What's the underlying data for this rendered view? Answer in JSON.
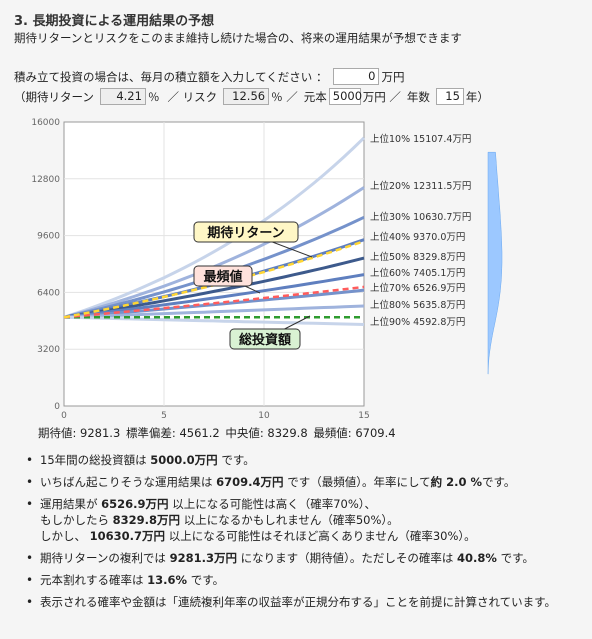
{
  "header": {
    "title": "3. 長期投資による運用結果の予想",
    "subtitle": "期待リターンとリスクをこのまま維持し続けた場合の、将来の運用結果が予想できます"
  },
  "inputs": {
    "monthly_label": "積み立て投資の場合は、毎月の積立額を入力してください ：",
    "monthly_value": "0",
    "monthly_unit": "万円",
    "open_paren": "（期待リターン",
    "return_value": "4.21",
    "return_unit": "％",
    "risk_label": "／ リスク",
    "risk_value": "12.56",
    "risk_unit": "％ ／",
    "principal_label": "元本",
    "principal_value": "5000",
    "principal_unit": "万円 ／",
    "years_label": "年数",
    "years_value": "15",
    "years_unit": "年）"
  },
  "chart_data": {
    "type": "line",
    "x_ticks": [
      "0",
      "5",
      "10",
      "15"
    ],
    "y_ticks": [
      "0",
      "3200",
      "6400",
      "9600",
      "12800",
      "16000"
    ],
    "xlim": [
      0,
      15
    ],
    "ylim": [
      0,
      16000
    ],
    "percentile_lines": [
      {
        "label": "上位10%",
        "value_label": "15107.4万円",
        "end": 15107.4,
        "color": "#c7d4ea"
      },
      {
        "label": "上位20%",
        "value_label": "12311.5万円",
        "end": 12311.5,
        "color": "#9fb3dd"
      },
      {
        "label": "上位30%",
        "value_label": "10630.7万円",
        "end": 10630.7,
        "color": "#7592cb"
      },
      {
        "label": "上位40%",
        "value_label": "9370.0万円",
        "end": 9370.0,
        "color": "#5f7fbf"
      },
      {
        "label": "上位50%",
        "value_label": "8329.8万円",
        "end": 8329.8,
        "color": "#3d5a8c"
      },
      {
        "label": "上位60%",
        "value_label": "7405.1万円",
        "end": 7405.1,
        "color": "#5f7fbf"
      },
      {
        "label": "上位70%",
        "value_label": "6526.9万円",
        "end": 6526.9,
        "color": "#7592cb"
      },
      {
        "label": "上位80%",
        "value_label": "5635.8万円",
        "end": 5635.8,
        "color": "#9fb3dd"
      },
      {
        "label": "上位90%",
        "value_label": "4592.8万円",
        "end": 4592.8,
        "color": "#c7d4ea"
      }
    ],
    "start_value": 5000,
    "expected_line": {
      "label": "期待リターン",
      "end": 9281.3,
      "color": "#ffd633"
    },
    "mode_line": {
      "label": "最頻値",
      "end": 6709.4,
      "color": "#ff5c5c"
    },
    "total_line": {
      "label": "総投資額",
      "end": 5000,
      "color": "#2e9b2e"
    }
  },
  "stats": {
    "expected": "期待値: 9281.3",
    "stdev": "標準偏差: 4561.2",
    "median": "中央値: 8329.8",
    "mode": "最頻値: 6709.4"
  },
  "notes": {
    "n1_a": "15年間の総投資額は ",
    "n1_b": "5000.0万円",
    "n1_c": " です。",
    "n2_a": "いちばん起こりそうな運用結果は ",
    "n2_b": "6709.4万円",
    "n2_c": " です（最頻値）。年率にして",
    "n2_d": "約 2.0 %",
    "n2_e": "です。",
    "n3_a": "運用結果が ",
    "n3_b": "6526.9万円",
    "n3_c": " 以上になる可能性は高く（確率70%）、",
    "n3_d": "もしかしたら ",
    "n3_e": "8329.8万円",
    "n3_f": " 以上になるかもしれません（確率50%）。",
    "n3_g": "しかし、 ",
    "n3_h": "10630.7万円",
    "n3_i": " 以上になる可能性はそれほど高くありません（確率30%）。",
    "n4_a": "期待リターンの複利では ",
    "n4_b": "9281.3万円",
    "n4_c": " になります（期待値）。ただしその確率は ",
    "n4_d": "40.8%",
    "n4_e": " です。",
    "n5_a": "元本割れする確率は ",
    "n5_b": "13.6%",
    "n5_c": " です。",
    "n6": "表示される確率や金額は「連続複利年率の収益率が正規分布する」ことを前提に計算されています。"
  }
}
